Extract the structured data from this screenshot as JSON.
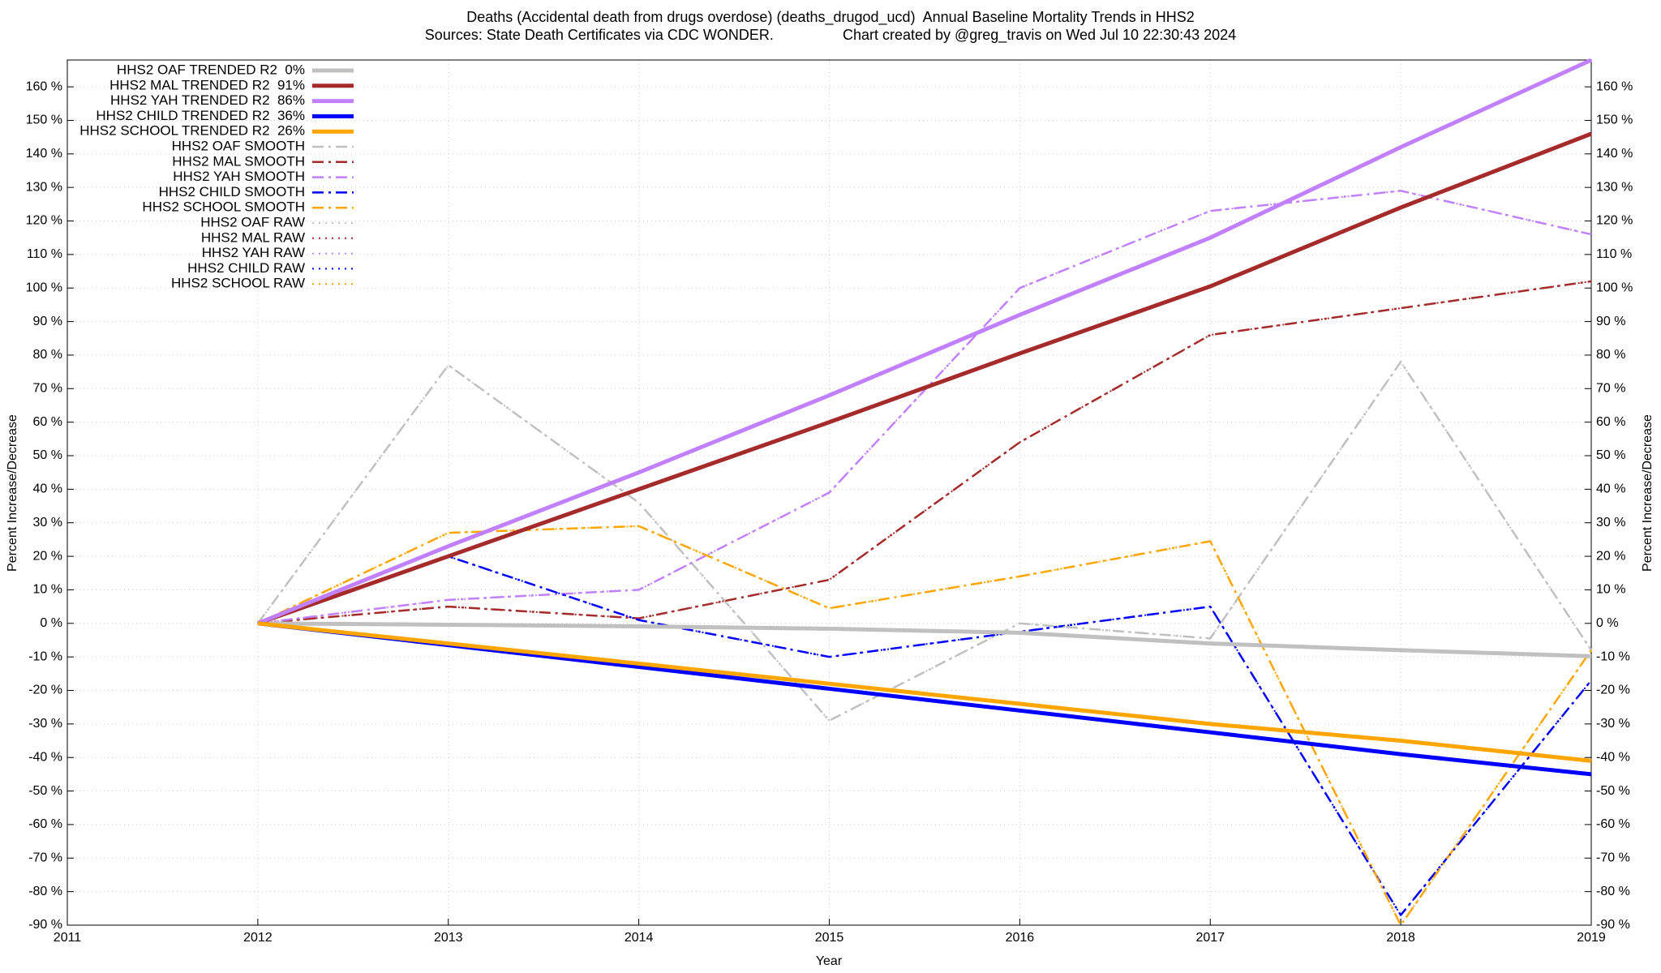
{
  "chart_data": {
    "type": "line",
    "title": "Deaths (Accidental death from drugs overdose) (deaths_drugod_ucd)  Annual Baseline Mortality Trends in HHS2",
    "subtitle": "Sources: State Death Certificates via CDC WONDER.                 Chart created by @greg_travis on Wed Jul 10 22:30:43 2024",
    "xlabel": "Year",
    "ylabel": "Percent Increase/Decrease",
    "y2label": "Percent Increase/Decrease",
    "x": [
      2012,
      2013,
      2014,
      2015,
      2016,
      2017,
      2018,
      2019
    ],
    "xlim": [
      2011,
      2019
    ],
    "xticks": [
      2011,
      2012,
      2013,
      2014,
      2015,
      2016,
      2017,
      2018,
      2019
    ],
    "ylim": [
      -90,
      168
    ],
    "yticks": [
      {
        "value": -90,
        "label": "-90 %"
      },
      {
        "value": -80,
        "label": "-80 %"
      },
      {
        "value": -70,
        "label": "-70 %"
      },
      {
        "value": -60,
        "label": "-60 %"
      },
      {
        "value": -50,
        "label": "-50 %"
      },
      {
        "value": -40,
        "label": "-40 %"
      },
      {
        "value": -30,
        "label": "-30 %"
      },
      {
        "value": -20,
        "label": "-20 %"
      },
      {
        "value": -10,
        "label": "-10 %"
      },
      {
        "value": 0,
        "label": "0 %"
      },
      {
        "value": 10,
        "label": "10 %"
      },
      {
        "value": 20,
        "label": "20 %"
      },
      {
        "value": 30,
        "label": "30 %"
      },
      {
        "value": 40,
        "label": "40 %"
      },
      {
        "value": 50,
        "label": "50 %"
      },
      {
        "value": 60,
        "label": "60 %"
      },
      {
        "value": 70,
        "label": "70 %"
      },
      {
        "value": 80,
        "label": "80 %"
      },
      {
        "value": 90,
        "label": "90 %"
      },
      {
        "value": 100,
        "label": "100 %"
      },
      {
        "value": 110,
        "label": "110 %"
      },
      {
        "value": 120,
        "label": "120 %"
      },
      {
        "value": 130,
        "label": "130 %"
      },
      {
        "value": 140,
        "label": "140 %"
      },
      {
        "value": 150,
        "label": "150 %"
      },
      {
        "value": 160,
        "label": "160 %"
      }
    ],
    "grid": true,
    "legend": "upper left",
    "series": [
      {
        "name": "HHS2 OAF TRENDED R2  0%",
        "color": "#c0c0c0",
        "dash": "solid",
        "values": [
          0,
          -0.4,
          -0.9,
          -1.6,
          -2.8,
          -6,
          -8,
          -9.8
        ]
      },
      {
        "name": "HHS2 MAL TRENDED R2  91%",
        "color": "#a52a2a",
        "dash": "solid",
        "values": [
          0,
          20,
          40,
          60,
          80.5,
          100.5,
          124,
          146
        ]
      },
      {
        "name": "HHS2 YAH TRENDED R2  86%",
        "color": "#c080ff",
        "dash": "solid",
        "values": [
          0,
          23,
          45,
          68,
          92,
          115,
          142,
          168
        ]
      },
      {
        "name": "HHS2 CHILD TRENDED R2  36%",
        "color": "#0000ff",
        "dash": "solid",
        "values": [
          0,
          -6.5,
          -13,
          -19.5,
          -26,
          -32.5,
          -39,
          -45
        ]
      },
      {
        "name": "HHS2 SCHOOL TRENDED R2  26%",
        "color": "#ffa500",
        "dash": "solid",
        "values": [
          0,
          -6,
          -12,
          -18,
          -24,
          -30,
          -35,
          -41
        ]
      },
      {
        "name": "HHS2 OAF SMOOTH",
        "color": "#c0c0c0",
        "dash": "dashdot",
        "values": [
          0,
          77,
          36,
          -29,
          0,
          -4.5,
          78,
          -8
        ]
      },
      {
        "name": "HHS2 MAL SMOOTH",
        "color": "#a52a2a",
        "dash": "dashdot",
        "values": [
          0,
          5,
          1.5,
          13,
          54,
          86,
          94,
          102
        ]
      },
      {
        "name": "HHS2 YAH SMOOTH",
        "color": "#c080ff",
        "dash": "dashdot",
        "values": [
          0,
          7,
          10,
          39,
          100,
          123,
          129,
          116
        ]
      },
      {
        "name": "HHS2 CHILD SMOOTH",
        "color": "#0000ff",
        "dash": "dashdot",
        "values": [
          0,
          20,
          1,
          -10,
          -2.5,
          5,
          -87,
          -17
        ]
      },
      {
        "name": "HHS2 SCHOOL SMOOTH",
        "color": "#ffa500",
        "dash": "dashdot",
        "values": [
          0,
          27,
          29,
          4.5,
          14,
          24.5,
          -90,
          -8
        ]
      },
      {
        "name": "HHS2 OAF RAW",
        "color": "#c0c0c0",
        "dash": "dot",
        "values": [
          0,
          77,
          36,
          -29,
          0,
          -4.5,
          78,
          -8
        ]
      },
      {
        "name": "HHS2 MAL RAW",
        "color": "#a52a2a",
        "dash": "dot",
        "values": [
          0,
          5,
          1.5,
          13,
          54,
          86,
          94,
          102
        ]
      },
      {
        "name": "HHS2 YAH RAW",
        "color": "#c080ff",
        "dash": "dot",
        "values": [
          0,
          7,
          10,
          39,
          100,
          123,
          129,
          116
        ]
      },
      {
        "name": "HHS2 CHILD RAW",
        "color": "#0000ff",
        "dash": "dot",
        "values": [
          0,
          20,
          1,
          -10,
          -2.5,
          5,
          -87,
          -17
        ]
      },
      {
        "name": "HHS2 SCHOOL RAW",
        "color": "#ffa500",
        "dash": "dot",
        "values": [
          0,
          27,
          29,
          4.5,
          14,
          24.5,
          -90,
          -8
        ]
      }
    ]
  }
}
